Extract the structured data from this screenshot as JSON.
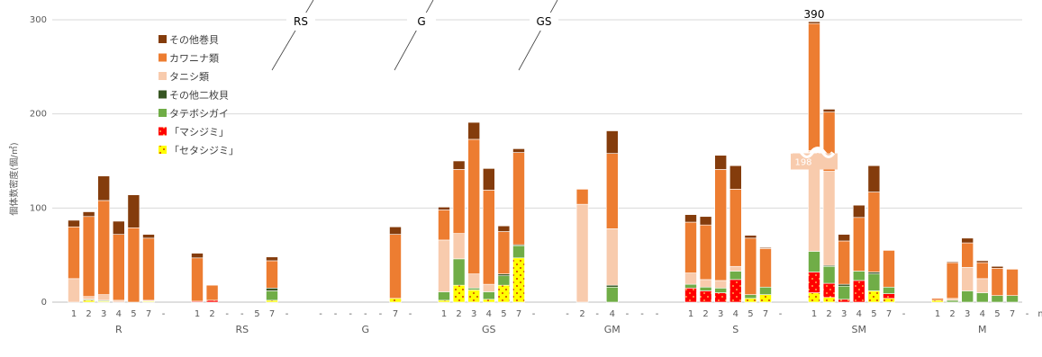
{
  "chart_data": {
    "type": "bar",
    "stacked": true,
    "ylabel": "個体数密度(個/㎡)",
    "ylim": [
      0,
      300
    ],
    "yticks": [
      0,
      100,
      200,
      300
    ],
    "grid": true,
    "legend_position": "top-left",
    "annotations": {
      "top_value": "390",
      "break_value": "198",
      "section_labels": [
        "RS",
        "G",
        "GS"
      ]
    },
    "series": [
      {
        "name": "「セタシジミ」",
        "color": "#FFFF00"
      },
      {
        "name": "「マシジミ」",
        "color": "#FF0000"
      },
      {
        "name": "タテボシガイ",
        "color": "#70AD47"
      },
      {
        "name": "その他二枚貝",
        "color": "#375623"
      },
      {
        "name": "タニシ類",
        "color": "#F8CBAD"
      },
      {
        "name": "カワニナ類",
        "color": "#ED7D31"
      },
      {
        "name": "その他巻貝",
        "color": "#843C0C"
      }
    ],
    "legend_order": [
      "その他巻貝",
      "カワニナ類",
      "タニシ類",
      "その他二枚貝",
      "タテボシガイ",
      "「マシジミ」",
      "「セタシジミ」"
    ],
    "groups": [
      {
        "name": "R",
        "bars": [
          {
            "label": "1",
            "values": [
              0,
              0,
              0,
              0,
              25,
              55,
              7
            ]
          },
          {
            "label": "2",
            "values": [
              2,
              0,
              1,
              0,
              3,
              85,
              5
            ]
          },
          {
            "label": "3",
            "values": [
              1,
              0,
              1,
              0,
              6,
              100,
              26
            ]
          },
          {
            "label": "4",
            "values": [
              0,
              0,
              0,
              0,
              2,
              70,
              14
            ]
          },
          {
            "label": "5",
            "values": [
              0,
              0,
              0,
              0,
              0,
              79,
              35
            ]
          },
          {
            "label": "7",
            "values": [
              1,
              0,
              0,
              0,
              1,
              66,
              4
            ]
          },
          {
            "label": "-",
            "values": [
              0,
              0,
              0,
              0,
              0,
              0,
              0
            ]
          }
        ]
      },
      {
        "name": "RS",
        "bars": [
          {
            "label": "1",
            "values": [
              0,
              1,
              0,
              0,
              0,
              46,
              5
            ]
          },
          {
            "label": "2",
            "values": [
              0,
              2,
              0,
              0,
              0,
              16,
              0
            ]
          },
          {
            "label": "-",
            "values": [
              0,
              0,
              0,
              0,
              0,
              0,
              0
            ]
          },
          {
            "label": "-",
            "values": [
              0,
              0,
              0,
              0,
              0,
              0,
              0
            ]
          },
          {
            "label": "5",
            "values": [
              0,
              0,
              0,
              0,
              0,
              0,
              0
            ]
          },
          {
            "label": "7",
            "values": [
              2,
              0,
              10,
              3,
              0,
              29,
              4
            ]
          },
          {
            "label": "-",
            "values": [
              0,
              0,
              0,
              0,
              0,
              0,
              0
            ]
          }
        ]
      },
      {
        "name": "G",
        "bars": [
          {
            "label": "-",
            "values": [
              0,
              0,
              0,
              0,
              0,
              0,
              0
            ]
          },
          {
            "label": "-",
            "values": [
              0,
              0,
              0,
              0,
              0,
              0,
              0
            ]
          },
          {
            "label": "-",
            "values": [
              0,
              0,
              0,
              0,
              0,
              0,
              0
            ]
          },
          {
            "label": "-",
            "values": [
              0,
              0,
              0,
              0,
              0,
              0,
              0
            ]
          },
          {
            "label": "-",
            "values": [
              0,
              0,
              0,
              0,
              0,
              0,
              0
            ]
          },
          {
            "label": "7",
            "values": [
              4,
              0,
              0,
              0,
              0,
              68,
              8
            ]
          },
          {
            "label": "-",
            "values": [
              0,
              0,
              0,
              0,
              0,
              0,
              0
            ]
          }
        ]
      },
      {
        "name": "GS",
        "bars": [
          {
            "label": "1",
            "values": [
              2,
              0,
              9,
              0,
              55,
              32,
              3
            ]
          },
          {
            "label": "2",
            "values": [
              18,
              0,
              28,
              0,
              27,
              68,
              9
            ]
          },
          {
            "label": "3",
            "values": [
              13,
              0,
              2,
              0,
              15,
              143,
              18
            ]
          },
          {
            "label": "4",
            "values": [
              3,
              0,
              8,
              0,
              8,
              100,
              23
            ]
          },
          {
            "label": "5",
            "values": [
              18,
              0,
              10,
              2,
              0,
              45,
              6
            ]
          },
          {
            "label": "7",
            "values": [
              47,
              0,
              13,
              1,
              0,
              98,
              4
            ]
          },
          {
            "label": "-",
            "values": [
              0,
              0,
              0,
              0,
              0,
              0,
              0
            ]
          }
        ]
      },
      {
        "name": "GM",
        "bars": [
          {
            "label": "-",
            "values": [
              0,
              0,
              0,
              0,
              0,
              0,
              0
            ]
          },
          {
            "label": "2",
            "values": [
              0,
              0,
              0,
              0,
              104,
              16,
              0
            ]
          },
          {
            "label": "-",
            "values": [
              0,
              0,
              0,
              0,
              0,
              0,
              0
            ]
          },
          {
            "label": "4",
            "values": [
              0,
              0,
              16,
              2,
              60,
              80,
              24
            ]
          },
          {
            "label": "-",
            "values": [
              0,
              0,
              0,
              0,
              0,
              0,
              0
            ]
          },
          {
            "label": "-",
            "values": [
              0,
              0,
              0,
              0,
              0,
              0,
              0
            ]
          },
          {
            "label": "-",
            "values": [
              0,
              0,
              0,
              0,
              0,
              0,
              0
            ]
          }
        ]
      },
      {
        "name": "S",
        "bars": [
          {
            "label": "1",
            "values": [
              0,
              15,
              4,
              0,
              12,
              54,
              8
            ]
          },
          {
            "label": "2",
            "values": [
              0,
              12,
              4,
              0,
              8,
              58,
              9
            ]
          },
          {
            "label": "3",
            "values": [
              0,
              10,
              5,
              0,
              8,
              118,
              15
            ]
          },
          {
            "label": "4",
            "values": [
              0,
              24,
              9,
              0,
              5,
              82,
              25
            ]
          },
          {
            "label": "5",
            "values": [
              4,
              0,
              4,
              0,
              0,
              60,
              3
            ]
          },
          {
            "label": "7",
            "values": [
              8,
              0,
              8,
              0,
              0,
              41,
              1
            ]
          },
          {
            "label": "-",
            "values": [
              0,
              0,
              0,
              0,
              0,
              0,
              0
            ]
          }
        ]
      },
      {
        "name": "SM",
        "bars": [
          {
            "label": "1",
            "values": [
              10,
              22,
              22,
              0,
              107,
              135,
              2
            ]
          },
          {
            "label": "2",
            "values": [
              5,
              15,
              18,
              1,
              100,
              63,
              3
            ]
          },
          {
            "label": "3",
            "values": [
              0,
              3,
              14,
              2,
              0,
              46,
              7
            ]
          },
          {
            "label": "4",
            "values": [
              0,
              23,
              10,
              0,
              0,
              57,
              13
            ]
          },
          {
            "label": "5",
            "values": [
              12,
              0,
              18,
              2,
              0,
              85,
              28
            ]
          },
          {
            "label": "7",
            "values": [
              4,
              5,
              7,
              0,
              0,
              39,
              0
            ]
          },
          {
            "label": "-",
            "values": [
              0,
              0,
              0,
              0,
              0,
              0,
              0
            ]
          }
        ]
      },
      {
        "name": "M",
        "bars": [
          {
            "label": "1",
            "values": [
              2,
              0,
              0,
              0,
              0,
              2,
              0
            ]
          },
          {
            "label": "2",
            "values": [
              0,
              0,
              2,
              0,
              2,
              38,
              1
            ]
          },
          {
            "label": "3",
            "values": [
              0,
              0,
              12,
              0,
              25,
              26,
              5
            ]
          },
          {
            "label": "4",
            "values": [
              0,
              0,
              10,
              0,
              15,
              17,
              2
            ]
          },
          {
            "label": "5",
            "values": [
              0,
              0,
              7,
              0,
              0,
              29,
              2
            ]
          },
          {
            "label": "7",
            "values": [
              0,
              0,
              7,
              0,
              0,
              28,
              0
            ]
          },
          {
            "label": "-",
            "values": [
              0,
              0,
              0,
              0,
              0,
              0,
              0
            ]
          },
          {
            "label": "m",
            "values": [
              0,
              0,
              0,
              0,
              0,
              0,
              0
            ]
          }
        ]
      }
    ]
  }
}
